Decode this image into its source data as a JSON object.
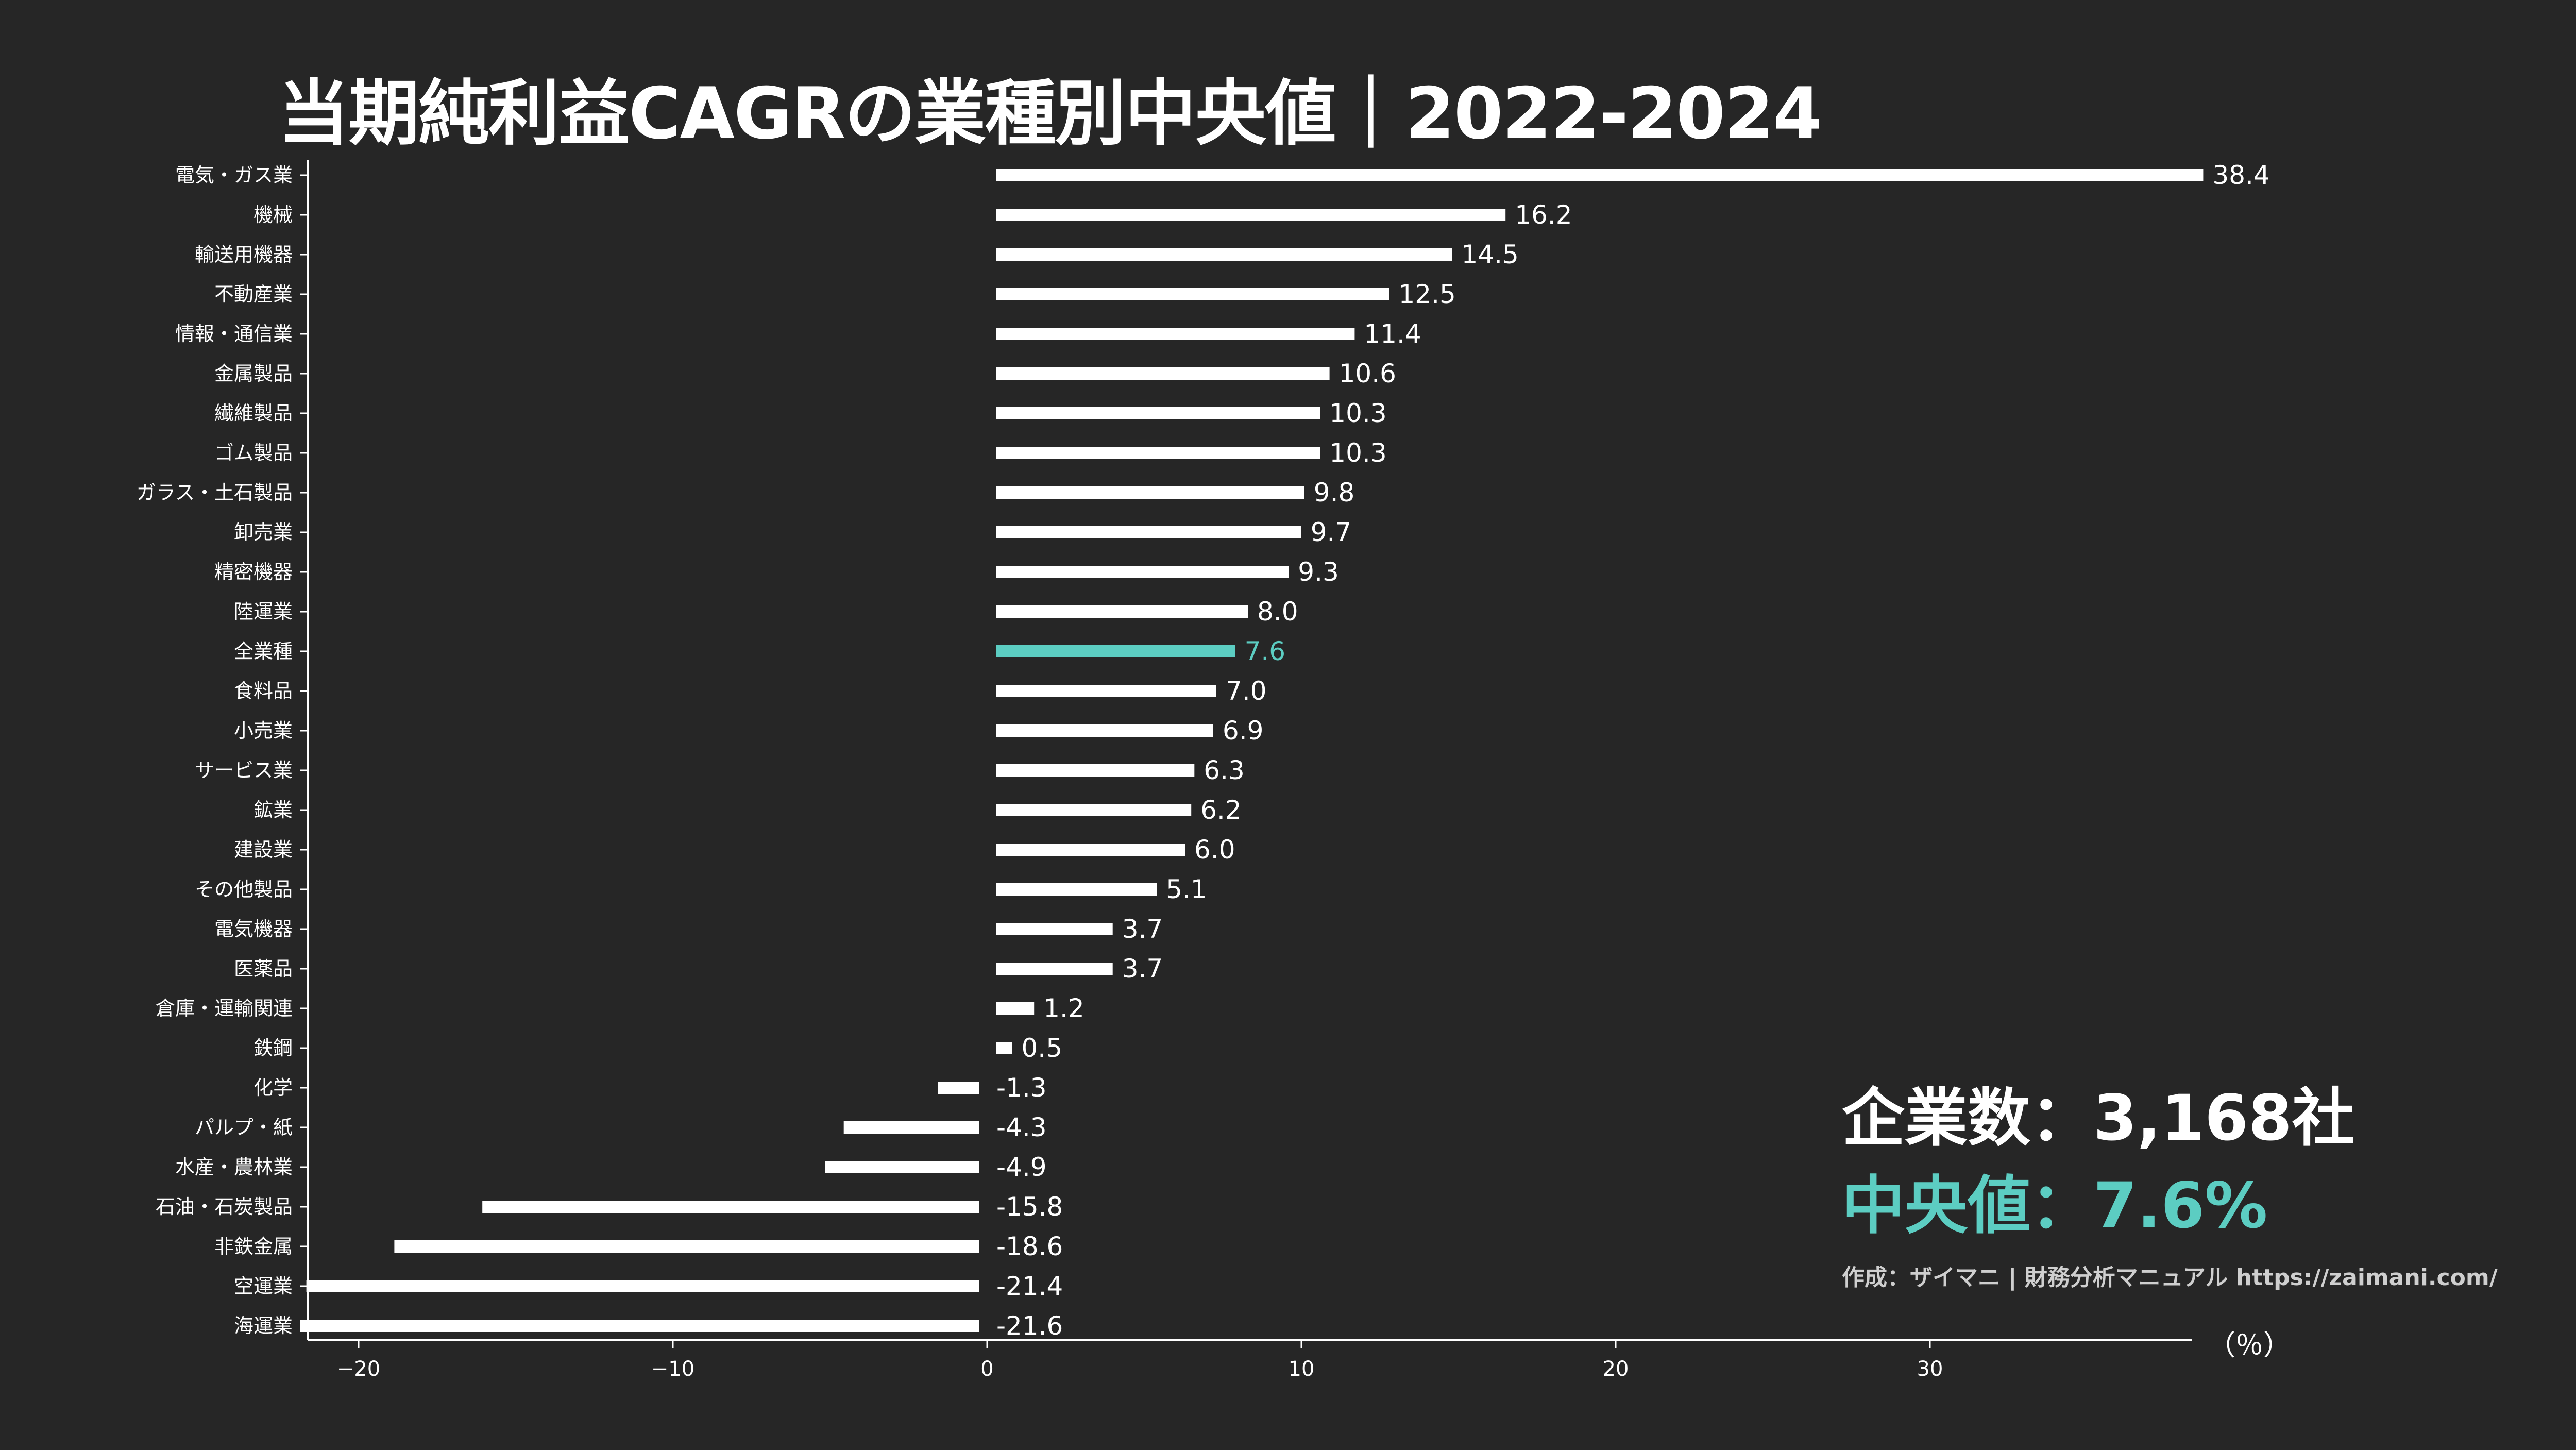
{
  "title": "当期純利益CAGRの業種別中央値｜2022-2024",
  "unit_label": "（％）",
  "info": {
    "count": "企業数：3,168社",
    "median": "中央値：7.6%",
    "credit": "作成：ザイマニ | 財務分析マニュアル https://zaimani.com/"
  },
  "colors": {
    "background": "#262626",
    "bar": "#ffffff",
    "highlight": "#5ccdc2"
  },
  "chart_data": {
    "type": "bar",
    "orientation": "horizontal",
    "highlight_category": "全業種",
    "xlim": [
      -22,
      38.4
    ],
    "xticks": [
      -20,
      -10,
      0,
      10,
      20,
      30
    ],
    "xtick_labels": [
      "−20",
      "−10",
      "0",
      "10",
      "20",
      "30"
    ],
    "categories": [
      "電気・ガス業",
      "機械",
      "輸送用機器",
      "不動産業",
      "情報・通信業",
      "金属製品",
      "繊維製品",
      "ゴム製品",
      "ガラス・土石製品",
      "卸売業",
      "精密機器",
      "陸運業",
      "全業種",
      "食料品",
      "小売業",
      "サービス業",
      "鉱業",
      "建設業",
      "その他製品",
      "電気機器",
      "医薬品",
      "倉庫・運輸関連",
      "鉄鋼",
      "化学",
      "パルプ・紙",
      "水産・農林業",
      "石油・石炭製品",
      "非鉄金属",
      "空運業",
      "海運業"
    ],
    "values": [
      38.4,
      16.2,
      14.5,
      12.5,
      11.4,
      10.6,
      10.3,
      10.3,
      9.8,
      9.7,
      9.3,
      8.0,
      7.6,
      7.0,
      6.9,
      6.3,
      6.2,
      6.0,
      5.1,
      3.7,
      3.7,
      1.2,
      0.5,
      -1.3,
      -4.3,
      -4.9,
      -15.8,
      -18.6,
      -21.4,
      -21.6
    ],
    "value_labels": [
      "38.4",
      "16.2",
      "14.5",
      "12.5",
      "11.4",
      "10.6",
      "10.3",
      "10.3",
      "9.8",
      "9.7",
      "9.3",
      "8.0",
      "7.6",
      "7.0",
      "6.9",
      "6.3",
      "6.2",
      "6.0",
      "5.1",
      "3.7",
      "3.7",
      "1.2",
      "0.5",
      "-1.3",
      "-4.3",
      "-4.9",
      "-15.8",
      "-18.6",
      "-21.4",
      "-21.6"
    ]
  }
}
